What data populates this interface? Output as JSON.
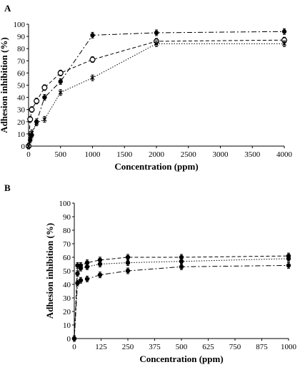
{
  "chart_data": [
    {
      "panel_label": "A",
      "type": "line",
      "xlabel": "Concentration (ppm)",
      "ylabel": "Adhesion inhibition (%)",
      "xlim": [
        0,
        4000
      ],
      "ylim": [
        0,
        100
      ],
      "xticks": [
        0,
        500,
        1000,
        1500,
        2000,
        2500,
        3000,
        3500,
        4000
      ],
      "yticks": [
        0,
        10,
        20,
        30,
        40,
        50,
        60,
        70,
        80,
        90,
        100
      ],
      "grid": false,
      "legend": "none",
      "series": [
        {
          "marker": "filled",
          "line_style": "dash-dot",
          "x": [
            0,
            25,
            50,
            125,
            250,
            500,
            1000,
            2000,
            4000
          ],
          "y": [
            0,
            5,
            9,
            20,
            40,
            53,
            91,
            93,
            94
          ]
        },
        {
          "marker": "open",
          "line_style": "dashed",
          "x": [
            0,
            25,
            50,
            125,
            250,
            500,
            1000,
            2000,
            4000
          ],
          "y": [
            0,
            22,
            30,
            37,
            48,
            60,
            71,
            86,
            87
          ]
        },
        {
          "marker": "cross",
          "line_style": "dotted",
          "x": [
            0,
            25,
            50,
            125,
            250,
            500,
            1000,
            2000,
            4000
          ],
          "y": [
            0,
            8,
            11,
            19,
            22,
            44,
            56,
            84,
            84
          ]
        }
      ]
    },
    {
      "panel_label": "B",
      "type": "line",
      "xlabel": "Concentration (ppm)",
      "ylabel": "Adhesion inhibition (%)",
      "xlim": [
        0,
        1000
      ],
      "ylim": [
        0,
        100
      ],
      "xticks": [
        0,
        125,
        250,
        375,
        500,
        625,
        750,
        875,
        1000
      ],
      "yticks": [
        0,
        10,
        20,
        30,
        40,
        50,
        60,
        70,
        80,
        90,
        100
      ],
      "grid": false,
      "legend": "none",
      "series": [
        {
          "marker": "filled",
          "line_style": "dashed",
          "x": [
            0,
            15,
            30,
            60,
            120,
            250,
            500,
            1000
          ],
          "y": [
            0,
            54,
            54,
            56,
            58,
            60,
            60,
            61
          ]
        },
        {
          "marker": "filled",
          "line_style": "dotted",
          "x": [
            0,
            15,
            30,
            60,
            120,
            250,
            500,
            1000
          ],
          "y": [
            0,
            48,
            52,
            53,
            55,
            56,
            57,
            59
          ]
        },
        {
          "marker": "filled",
          "line_style": "dash-dot",
          "x": [
            0,
            15,
            30,
            60,
            120,
            250,
            500,
            1000
          ],
          "y": [
            0,
            41,
            43,
            44,
            47,
            50,
            53,
            54
          ]
        }
      ]
    }
  ]
}
